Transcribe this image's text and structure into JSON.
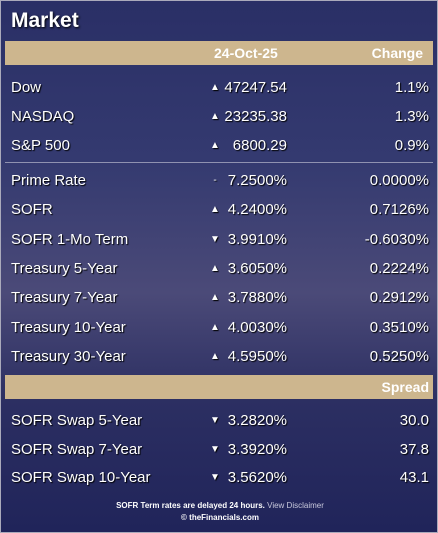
{
  "header": {
    "title": "Market"
  },
  "table": {
    "date": "24-Oct-25",
    "change_label": "Change",
    "indices": [
      {
        "name": "Dow",
        "arrow": "▲",
        "value": "47247.54",
        "change": "1.1%"
      },
      {
        "name": "NASDAQ",
        "arrow": "▲",
        "value": "23235.38",
        "change": "1.3%"
      },
      {
        "name": "S&P 500",
        "arrow": "▲",
        "value": "6800.29",
        "change": "0.9%"
      }
    ],
    "rates": [
      {
        "name": "Prime Rate",
        "arrow": "-",
        "value": "7.2500%",
        "change": "0.0000%"
      },
      {
        "name": "SOFR",
        "arrow": "▲",
        "value": "4.2400%",
        "change": "0.7126%"
      },
      {
        "name": "SOFR 1-Mo Term",
        "arrow": "▼",
        "value": "3.9910%",
        "change": "-0.6030%"
      },
      {
        "name": "Treasury 5-Year",
        "arrow": "▲",
        "value": "3.6050%",
        "change": "0.2224%"
      },
      {
        "name": "Treasury 7-Year",
        "arrow": "▲",
        "value": "3.7880%",
        "change": "0.2912%"
      },
      {
        "name": "Treasury 10-Year",
        "arrow": "▲",
        "value": "4.0030%",
        "change": "0.3510%"
      },
      {
        "name": "Treasury 30-Year",
        "arrow": "▲",
        "value": "4.5950%",
        "change": "0.5250%"
      }
    ],
    "spread_label": "Spread",
    "swaps": [
      {
        "name": "SOFR Swap 5-Year",
        "arrow": "▼",
        "value": "3.2820%",
        "change": "30.0"
      },
      {
        "name": "SOFR Swap 7-Year",
        "arrow": "▼",
        "value": "3.3920%",
        "change": "37.8"
      },
      {
        "name": "SOFR Swap 10-Year",
        "arrow": "▼",
        "value": "3.5620%",
        "change": "43.1"
      }
    ]
  },
  "footer": {
    "note": "SOFR Term rates are delayed 24 hours.",
    "link": "View Disclaimer",
    "copyright": "© theFinancials.com"
  }
}
